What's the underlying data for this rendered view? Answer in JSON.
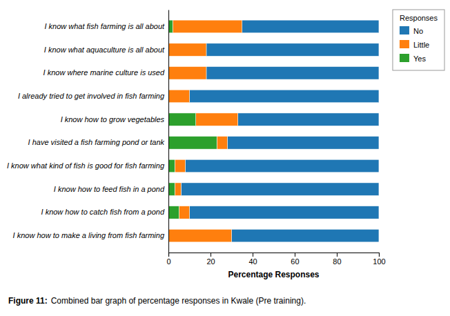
{
  "chart_data": {
    "type": "bar",
    "orientation": "horizontal",
    "stacked": true,
    "categories": [
      "I know what fish farming is all about",
      "I know what aquaculture is all about",
      "I know where marine culture is used",
      "I already tried to get involved in fish farming",
      "I know how to grow vegetables",
      "I have visited a fish farming pond or tank",
      "I know what kind of fish is good for fish farming",
      "I know how to feed fish in a pond",
      "I know how to catch fish from a pond",
      "I know how to make a living from fish farming"
    ],
    "series": [
      {
        "name": "No",
        "values": [
          65,
          82,
          82,
          90,
          67,
          72,
          92,
          94,
          90,
          70
        ]
      },
      {
        "name": "Little",
        "values": [
          33,
          18,
          18,
          10,
          20,
          5,
          5,
          3,
          5,
          30
        ]
      },
      {
        "name": "Yes",
        "values": [
          2,
          0,
          0,
          0,
          13,
          23,
          3,
          3,
          5,
          0
        ]
      }
    ],
    "xlabel": "Percentage Responses",
    "legend_title": "Responses",
    "legend": "right",
    "xlim": [
      0,
      100
    ],
    "xticks": [
      0,
      20,
      40,
      60,
      80,
      100
    ],
    "annotations": [
      "Figure 11:",
      "Combined bar graph of percentage responses in Kwale (Pre training)."
    ]
  }
}
